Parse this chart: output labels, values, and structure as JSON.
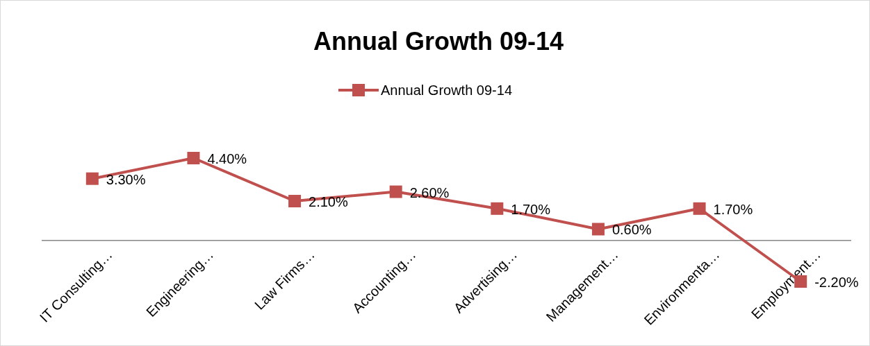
{
  "chart_data": {
    "type": "line",
    "title": "Annual Growth 09-14",
    "categories": [
      "IT Consulting…",
      "Engineering…",
      "Law Firms…",
      "Accounting…",
      "Advertising…",
      "Management…",
      "Environmenta…",
      "Employment…"
    ],
    "series": [
      {
        "name": "Annual Growth 09-14",
        "color": "#c0504d",
        "values": [
          3.3,
          4.4,
          2.1,
          2.6,
          1.7,
          0.6,
          1.7,
          -2.2
        ],
        "value_labels": [
          "3.30%",
          "4.40%",
          "2.10%",
          "2.60%",
          "1.70%",
          "0.60%",
          "1.70%",
          "-2.20%"
        ]
      }
    ],
    "legend": "top",
    "marker": "square"
  }
}
